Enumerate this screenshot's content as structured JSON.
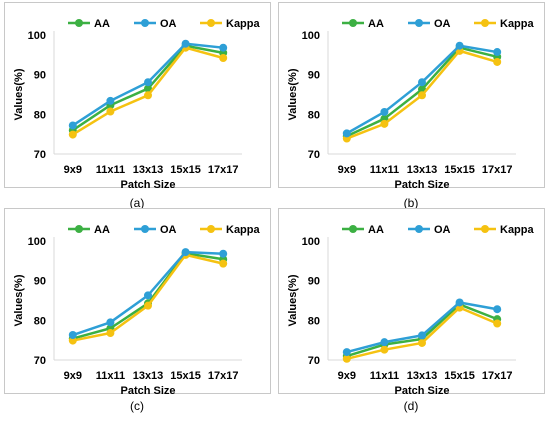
{
  "colors": {
    "AA": "#3cb043",
    "OA": "#2e9fd6",
    "Kappa": "#f5c211",
    "border": "#c8c8c8",
    "axis": "#d9d9d9",
    "text": "#000000"
  },
  "chart_data": [
    {
      "type": "line",
      "caption": "(a)",
      "categories": [
        "9x9",
        "11x11",
        "13x13",
        "15x15",
        "17x17"
      ],
      "ylabel": "Values(%)",
      "xlabel": "Patch Size",
      "ylim": [
        70,
        100
      ],
      "yticks": [
        70,
        80,
        90,
        100
      ],
      "legend_position": "top",
      "series": [
        {
          "name": "AA",
          "values": [
            76.0,
            82.3,
            86.5,
            97.3,
            95.5
          ]
        },
        {
          "name": "OA",
          "values": [
            77.2,
            83.4,
            88.1,
            97.8,
            96.8
          ]
        },
        {
          "name": "Kappa",
          "values": [
            74.9,
            80.7,
            84.8,
            96.8,
            94.2
          ]
        }
      ]
    },
    {
      "type": "line",
      "caption": "(b)",
      "categories": [
        "9x9",
        "11x11",
        "13x13",
        "15x15",
        "17x17"
      ],
      "ylabel": "Values(%)",
      "xlabel": "Patch Size",
      "ylim": [
        70,
        100
      ],
      "yticks": [
        70,
        80,
        90,
        100
      ],
      "legend_position": "top",
      "series": [
        {
          "name": "AA",
          "values": [
            74.5,
            78.9,
            86.3,
            96.8,
            94.5
          ]
        },
        {
          "name": "OA",
          "values": [
            75.2,
            80.6,
            88.1,
            97.3,
            95.7
          ]
        },
        {
          "name": "Kappa",
          "values": [
            73.9,
            77.6,
            84.8,
            96.0,
            93.2
          ]
        }
      ]
    },
    {
      "type": "line",
      "caption": "(c)",
      "categories": [
        "9x9",
        "11x11",
        "13x13",
        "15x15",
        "17x17"
      ],
      "ylabel": "Values(%)",
      "xlabel": "Patch Size",
      "ylim": [
        70,
        100
      ],
      "yticks": [
        70,
        80,
        90,
        100
      ],
      "legend_position": "top",
      "series": [
        {
          "name": "AA",
          "values": [
            75.4,
            78.0,
            84.3,
            96.9,
            95.4
          ]
        },
        {
          "name": "OA",
          "values": [
            76.3,
            79.5,
            86.3,
            97.2,
            96.8
          ]
        },
        {
          "name": "Kappa",
          "values": [
            74.9,
            76.8,
            83.7,
            96.5,
            94.3
          ]
        }
      ]
    },
    {
      "type": "line",
      "caption": "(d)",
      "categories": [
        "9x9",
        "11x11",
        "13x13",
        "15x15",
        "17x17"
      ],
      "ylabel": "Values(%)",
      "xlabel": "Patch Size",
      "ylim": [
        70,
        100
      ],
      "yticks": [
        70,
        80,
        90,
        100
      ],
      "legend_position": "top",
      "series": [
        {
          "name": "AA",
          "values": [
            71.0,
            73.9,
            75.3,
            84.0,
            80.3
          ]
        },
        {
          "name": "OA",
          "values": [
            72.0,
            74.5,
            76.2,
            84.5,
            82.8
          ]
        },
        {
          "name": "Kappa",
          "values": [
            70.3,
            72.6,
            74.3,
            83.2,
            79.2
          ]
        }
      ]
    }
  ]
}
